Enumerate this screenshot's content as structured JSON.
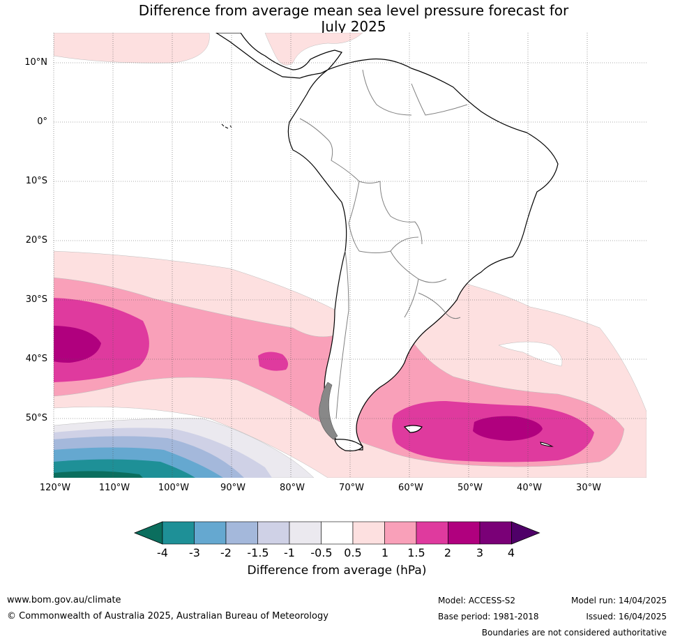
{
  "title_line1": "Difference from average mean sea level pressure forecast for",
  "title_line2": "July 2025",
  "lat_labels": [
    "10°N",
    "0°",
    "10°S",
    "20°S",
    "30°S",
    "40°S",
    "50°S"
  ],
  "lon_labels": [
    "120°W",
    "110°W",
    "100°W",
    "90°W",
    "80°W",
    "70°W",
    "60°W",
    "50°W",
    "40°W",
    "30°W"
  ],
  "colorbar": {
    "title": "Difference from average (hPa)",
    "tick_labels": [
      "-4",
      "-3",
      "-2",
      "-1.5",
      "-1",
      "-0.5",
      "0.5",
      "1",
      "1.5",
      "2",
      "3",
      "4"
    ],
    "colors": [
      "#0b6e5e",
      "#1e9097",
      "#65a8d0",
      "#a4b8db",
      "#cfd1e6",
      "#ebe9ef",
      "#ffffff",
      "#fde0e0",
      "#f9a0b9",
      "#df3a9e",
      "#b0007e",
      "#7a0077",
      "#4f0068"
    ]
  },
  "map_colors": {
    "ocean_base": "#ffffff",
    "land": "#ffffff",
    "coast": "#000000",
    "borders": "#808080"
  },
  "footer": {
    "url": "www.bom.gov.au/climate",
    "copyright": "© Commonwealth of Australia 2025, Australian Bureau of Meteorology",
    "model": "Model: ACCESS-S2",
    "base_period": "Base period: 1981-2018",
    "model_run": "Model run: 14/04/2025",
    "issued": "Issued: 16/04/2025",
    "disclaimer": "Boundaries are not considered authoritative"
  }
}
